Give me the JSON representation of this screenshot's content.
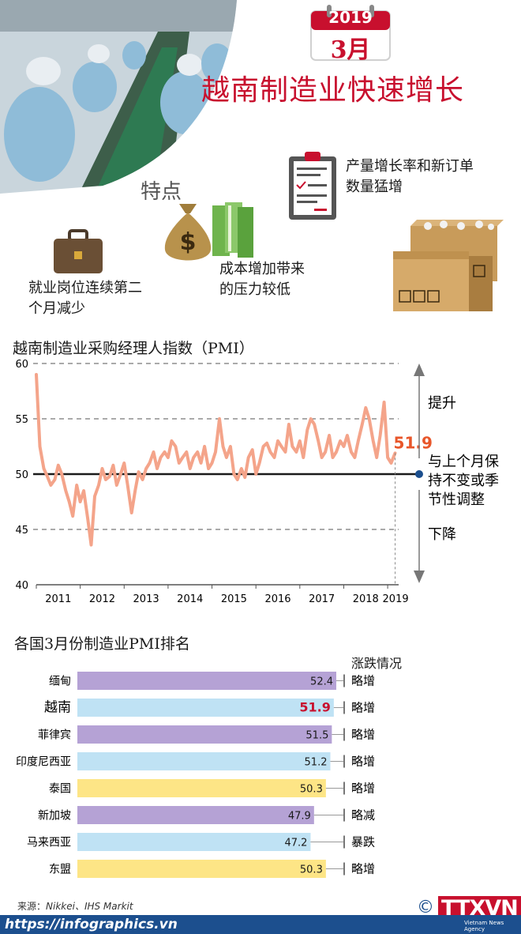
{
  "header": {
    "calendar_year": "2019",
    "calendar_month": "3月",
    "title": "越南制造业快速增长",
    "features_label": "特点",
    "features": [
      {
        "text_lines": [
          "产量增长率和新订单",
          "数量猛增"
        ],
        "icon": "clipboard-icon"
      },
      {
        "text_lines": [
          "成本增加带来",
          "的压力较低"
        ],
        "icon": "money-bag-icon"
      },
      {
        "text_lines": [
          "就业岗位连续第二",
          "个月减少"
        ],
        "icon": "briefcase-icon"
      }
    ]
  },
  "chart_data": [
    {
      "type": "line",
      "title": "越南制造业采购经理人指数（PMI）",
      "y_ticks": [
        "60",
        "55",
        "50",
        "45",
        "40"
      ],
      "ylim": [
        40,
        60
      ],
      "x_ticks": [
        "2011",
        "2012",
        "2013",
        "2014",
        "2015",
        "2016",
        "2017",
        "2018",
        "2019"
      ],
      "xlim": [
        2011.0,
        2019.25
      ],
      "grid": "dashed at 55, 60, 45; solid baseline at 50",
      "series_color": "#f4a48a",
      "x": [
        2011.0,
        2011.08,
        2011.17,
        2011.25,
        2011.33,
        2011.42,
        2011.5,
        2011.58,
        2011.67,
        2011.75,
        2011.83,
        2011.92,
        2012.0,
        2012.08,
        2012.17,
        2012.25,
        2012.33,
        2012.42,
        2012.5,
        2012.58,
        2012.67,
        2012.75,
        2012.83,
        2012.92,
        2013.0,
        2013.08,
        2013.17,
        2013.25,
        2013.33,
        2013.42,
        2013.5,
        2013.58,
        2013.67,
        2013.75,
        2013.83,
        2013.92,
        2014.0,
        2014.08,
        2014.17,
        2014.25,
        2014.33,
        2014.42,
        2014.5,
        2014.58,
        2014.67,
        2014.75,
        2014.83,
        2014.92,
        2015.0,
        2015.08,
        2015.17,
        2015.25,
        2015.33,
        2015.42,
        2015.5,
        2015.58,
        2015.67,
        2015.75,
        2015.83,
        2015.92,
        2016.0,
        2016.08,
        2016.17,
        2016.25,
        2016.33,
        2016.42,
        2016.5,
        2016.58,
        2016.67,
        2016.75,
        2016.83,
        2016.92,
        2017.0,
        2017.08,
        2017.17,
        2017.25,
        2017.33,
        2017.42,
        2017.5,
        2017.58,
        2017.67,
        2017.75,
        2017.83,
        2017.92,
        2018.0,
        2018.08,
        2018.17,
        2018.25,
        2018.33,
        2018.42,
        2018.5,
        2018.58,
        2018.67,
        2018.75,
        2018.83,
        2018.92,
        2019.0,
        2019.08,
        2019.17
      ],
      "values": [
        59.0,
        52.5,
        50.5,
        49.8,
        49.0,
        49.5,
        50.8,
        50.0,
        48.5,
        47.5,
        46.2,
        49.0,
        47.5,
        48.5,
        46.0,
        43.6,
        48.0,
        49.0,
        50.5,
        49.5,
        49.8,
        50.8,
        49.0,
        50.0,
        51.0,
        49.0,
        46.5,
        48.5,
        50.2,
        49.5,
        50.5,
        51.0,
        52.0,
        50.5,
        51.5,
        52.0,
        51.5,
        53.0,
        52.5,
        51.0,
        51.5,
        52.0,
        50.5,
        51.5,
        52.0,
        51.0,
        52.5,
        50.5,
        51.0,
        52.0,
        55.0,
        52.5,
        51.5,
        52.5,
        50.0,
        49.5,
        50.5,
        49.7,
        51.5,
        52.2,
        50.0,
        51.0,
        52.5,
        52.8,
        52.0,
        51.5,
        53.0,
        52.5,
        52.0,
        54.5,
        52.5,
        52.0,
        53.0,
        51.5,
        54.0,
        55.0,
        54.5,
        53.0,
        51.5,
        52.0,
        53.5,
        51.5,
        52.0,
        53.0,
        52.5,
        53.5,
        52.0,
        51.5,
        53.0,
        54.5,
        56.0,
        55.0,
        53.0,
        51.5,
        53.5,
        56.5,
        51.5,
        51.0,
        51.9
      ],
      "last_value_label": "51.9",
      "last_value_color": "#e8562a",
      "annotations": {
        "up": "提升",
        "neutral": "与上个月保持不变或季节性调整",
        "down": "下降"
      },
      "neutral_lines": [
        "与上个月保",
        "持不变或季",
        "节性调整"
      ]
    },
    {
      "type": "bar",
      "orientation": "horizontal",
      "title": "各国3月份制造业PMI排名",
      "status_header": "涨跌情况",
      "xlim": [
        0,
        52.4
      ],
      "categories": [
        "缅甸",
        "越南",
        "菲律宾",
        "印度尼西亚",
        "泰国",
        "新加坡",
        "马来西亚",
        "东盟"
      ],
      "values": [
        52.4,
        51.9,
        51.5,
        51.2,
        50.3,
        47.9,
        47.2,
        50.3
      ],
      "value_labels": [
        "52.4",
        "51.9",
        "51.5",
        "51.2",
        "50.3",
        "47.9",
        "47.2",
        "50.3"
      ],
      "status": [
        "略增",
        "略增",
        "略增",
        "略增",
        "略增",
        "略减",
        "暴跌",
        "略增"
      ],
      "bar_colors": [
        "#b5a2d5",
        "#bfe2f4",
        "#b5a2d5",
        "#bfe2f4",
        "#fde586",
        "#b5a2d5",
        "#bfe2f4",
        "#fde586"
      ],
      "highlight_index": 1,
      "highlight_color": "#c8102e"
    }
  ],
  "footer": {
    "source_label": "来源：",
    "sources": "Nikkei、IHS Markit",
    "website": "https://infographics.vn",
    "copyright": "©",
    "logo": "TTXVN",
    "agency": "Vietnam News Agency"
  }
}
